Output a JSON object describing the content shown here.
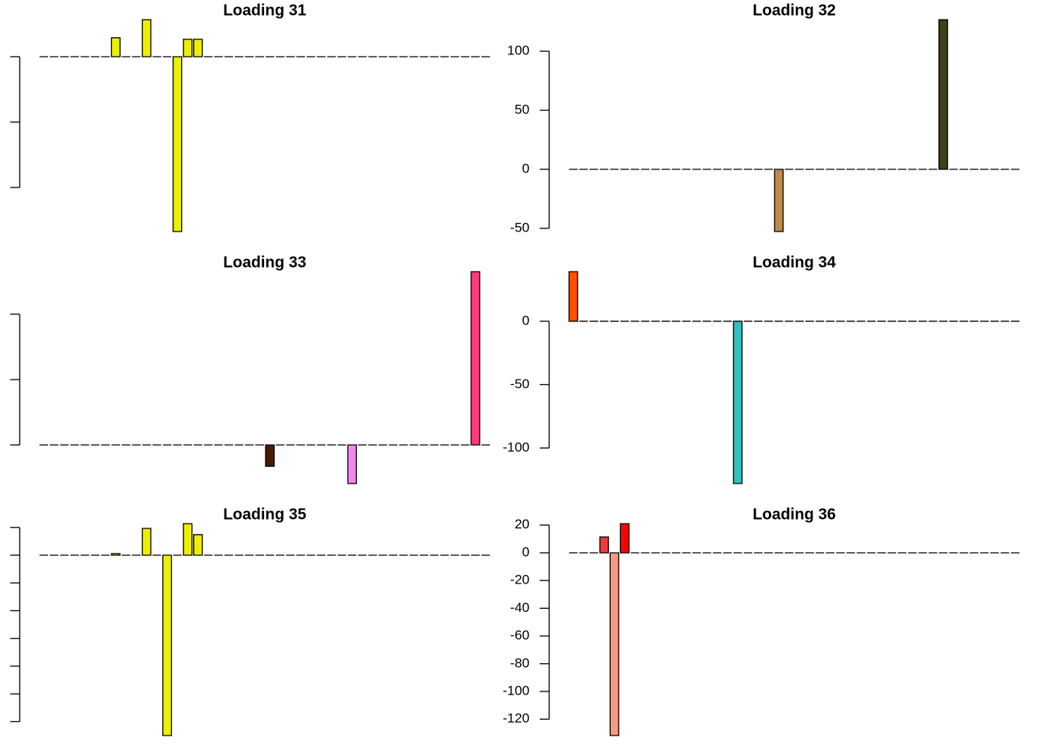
{
  "chart_data": [
    {
      "type": "bar",
      "title": "Loading 31",
      "color": "#eeee00",
      "ytick_labels": false,
      "values": [
        0,
        0,
        0,
        0,
        0,
        0,
        0,
        14.5,
        0,
        0,
        28.3,
        0,
        0,
        -133.7,
        13.3,
        13.3,
        0,
        0,
        0,
        0,
        0,
        0,
        0,
        0,
        0,
        0,
        0,
        0,
        0,
        0,
        0,
        0,
        0,
        0,
        0,
        0,
        0,
        0,
        0,
        0,
        0,
        0,
        0,
        0
      ],
      "ylim": [
        -133.7,
        28.3
      ],
      "yticks": [
        -100,
        -50,
        0
      ]
    },
    {
      "type": "bar",
      "title": "Loading 32",
      "ytick_labels": true,
      "values": [
        0,
        0,
        0,
        0,
        0,
        0,
        0,
        0,
        0,
        0,
        0,
        0,
        0,
        0,
        0,
        0,
        0,
        0,
        0,
        0,
        -52.7,
        0,
        0,
        0,
        0,
        0,
        0,
        0,
        0,
        0,
        0,
        0,
        0,
        0,
        0,
        0,
        126.7,
        0,
        0,
        0,
        0,
        0,
        0,
        0
      ],
      "colors": [
        null,
        null,
        null,
        null,
        null,
        null,
        null,
        null,
        null,
        null,
        null,
        null,
        null,
        null,
        null,
        null,
        null,
        null,
        null,
        null,
        "#c08a48",
        null,
        null,
        null,
        null,
        null,
        null,
        null,
        null,
        null,
        null,
        null,
        null,
        null,
        null,
        null,
        "#3f3f1b",
        null,
        null,
        null,
        null,
        null,
        null,
        null
      ],
      "ylim": [
        -52.7,
        126.7
      ],
      "yticks": [
        -50,
        0,
        50,
        100
      ]
    },
    {
      "type": "bar",
      "title": "Loading 33",
      "ytick_labels": false,
      "values": [
        0,
        0,
        0,
        0,
        0,
        0,
        0,
        0,
        0,
        0,
        0,
        0,
        0,
        0,
        0,
        0,
        0,
        0,
        0,
        0,
        0,
        0,
        -16.3,
        0,
        0,
        0,
        0,
        0,
        0,
        0,
        -29.5,
        0,
        0,
        0,
        0,
        0,
        0,
        0,
        0,
        0,
        0,
        0,
        132.5,
        0
      ],
      "colors": [
        null,
        null,
        null,
        null,
        null,
        null,
        null,
        null,
        null,
        null,
        null,
        null,
        null,
        null,
        null,
        null,
        null,
        null,
        null,
        null,
        null,
        null,
        "#4a1a00",
        null,
        null,
        null,
        null,
        null,
        null,
        null,
        "#ee88ee",
        null,
        null,
        null,
        null,
        null,
        null,
        null,
        null,
        null,
        null,
        null,
        "#ff3a80",
        null
      ],
      "ylim": [
        -29.5,
        132.5
      ],
      "yticks": [
        0,
        50,
        100
      ]
    },
    {
      "type": "bar",
      "title": "Loading 34",
      "ytick_labels": true,
      "values": [
        39.1,
        0,
        0,
        0,
        0,
        0,
        0,
        0,
        0,
        0,
        0,
        0,
        0,
        0,
        0,
        0,
        -128,
        0,
        0,
        0,
        0,
        0,
        0,
        0,
        0,
        0,
        0,
        0,
        0,
        0,
        0,
        0,
        0,
        0,
        0,
        0,
        0,
        0,
        0,
        0,
        0,
        0,
        0,
        0
      ],
      "colors": [
        "#ff5000",
        null,
        null,
        null,
        null,
        null,
        null,
        null,
        null,
        null,
        null,
        null,
        null,
        null,
        null,
        null,
        "#33c0c0",
        null,
        null,
        null,
        null,
        null,
        null,
        null,
        null,
        null,
        null,
        null,
        null,
        null,
        null,
        null,
        null,
        null,
        null,
        null,
        null,
        null,
        null,
        null,
        null,
        null,
        null,
        null
      ],
      "ylim": [
        -128,
        39.1
      ],
      "yticks": [
        -100,
        -50,
        0
      ]
    },
    {
      "type": "bar",
      "title": "Loading 35",
      "color": "#eeee00",
      "ytick_labels": false,
      "values": [
        0,
        0,
        0,
        0,
        0,
        0,
        0,
        1.1,
        0,
        0,
        19.3,
        0,
        -130,
        0,
        22.7,
        14.8,
        0,
        0,
        0,
        0,
        0,
        0,
        0,
        0,
        0,
        0,
        0,
        0,
        0,
        0,
        0,
        0,
        0,
        0,
        0,
        0,
        0,
        0,
        0,
        0,
        0,
        0,
        0,
        0
      ],
      "ylim": [
        -130,
        22.7
      ],
      "yticks": [
        -120,
        -100,
        -80,
        -60,
        -40,
        -20,
        0,
        20
      ]
    },
    {
      "type": "bar",
      "title": "Loading 36",
      "ytick_labels": true,
      "values": [
        0,
        0,
        0,
        11.4,
        -131.8,
        21,
        0,
        0,
        0,
        0,
        0,
        0,
        0,
        0,
        0,
        0,
        0,
        0,
        0,
        0,
        0,
        0,
        0,
        0,
        0,
        0,
        0,
        0,
        0,
        0,
        0,
        0,
        0,
        0,
        0,
        0,
        0,
        0,
        0,
        0,
        0,
        0,
        0,
        0
      ],
      "colors": [
        null,
        null,
        null,
        "#ee3b3b",
        "#fa9880",
        "#ff0000",
        null,
        null,
        null,
        null,
        null,
        null,
        null,
        null,
        null,
        null,
        null,
        null,
        null,
        null,
        null,
        null,
        null,
        null,
        null,
        null,
        null,
        null,
        null,
        null,
        null,
        null,
        null,
        null,
        null,
        null,
        null,
        null,
        null,
        null,
        null,
        null,
        null,
        null
      ],
      "ylim": [
        -131.8,
        21
      ],
      "yticks": [
        -120,
        -100,
        -80,
        -60,
        -40,
        -20,
        0,
        20
      ]
    }
  ]
}
